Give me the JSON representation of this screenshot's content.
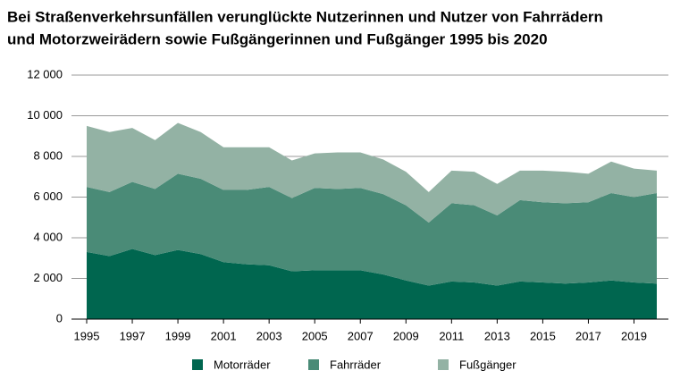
{
  "chart_data": {
    "type": "stacked-area",
    "title": [
      "Bei Straßenverkehrsunfällen verunglückte Nutzerinnen und Nutzer von Fahrrädern",
      "und Motorzweirädern sowie Fußgängerinnen und Fußgänger 1995 bis 2020"
    ],
    "x": [
      1995,
      1996,
      1997,
      1998,
      1999,
      2000,
      2001,
      2002,
      2003,
      2004,
      2005,
      2006,
      2007,
      2008,
      2009,
      2010,
      2011,
      2012,
      2013,
      2014,
      2015,
      2016,
      2017,
      2018,
      2019,
      2020
    ],
    "series": [
      {
        "name": "Motorräder",
        "color": "#00664f",
        "values": [
          3300,
          3100,
          3450,
          3150,
          3400,
          3200,
          2800,
          2700,
          2650,
          2350,
          2400,
          2400,
          2400,
          2200,
          1900,
          1650,
          1850,
          1800,
          1650,
          1850,
          1800,
          1750,
          1800,
          1900,
          1800,
          1750
        ]
      },
      {
        "name": "Fahrräder",
        "color": "#4a8b77",
        "values": [
          3200,
          3150,
          3300,
          3250,
          3750,
          3700,
          3550,
          3650,
          3850,
          3600,
          4050,
          4000,
          4050,
          3950,
          3700,
          3100,
          3850,
          3800,
          3450,
          4000,
          3950,
          3950,
          3950,
          4300,
          4200,
          4450
        ]
      },
      {
        "name": "Fußgänger",
        "color": "#93b2a4",
        "values": [
          3000,
          2950,
          2650,
          2400,
          2500,
          2300,
          2100,
          2100,
          1950,
          1850,
          1700,
          1800,
          1750,
          1700,
          1650,
          1500,
          1600,
          1650,
          1550,
          1450,
          1550,
          1550,
          1400,
          1550,
          1400,
          1100
        ]
      }
    ],
    "xlim": [
      1995,
      2020
    ],
    "xticks": [
      1995,
      1997,
      1999,
      2001,
      2003,
      2005,
      2007,
      2009,
      2011,
      2013,
      2015,
      2017,
      2019
    ],
    "ylim": [
      0,
      12000
    ],
    "yticks": [
      0,
      {
        "value": 2000,
        "label": "2 000"
      },
      {
        "value": 4000,
        "label": "4 000"
      },
      {
        "value": 6000,
        "label": "6 000"
      },
      {
        "value": 8000,
        "label": "8 000"
      },
      {
        "value": 10000,
        "label": "10 000"
      },
      {
        "value": 12000,
        "label": "12 000"
      }
    ],
    "grid": true
  }
}
